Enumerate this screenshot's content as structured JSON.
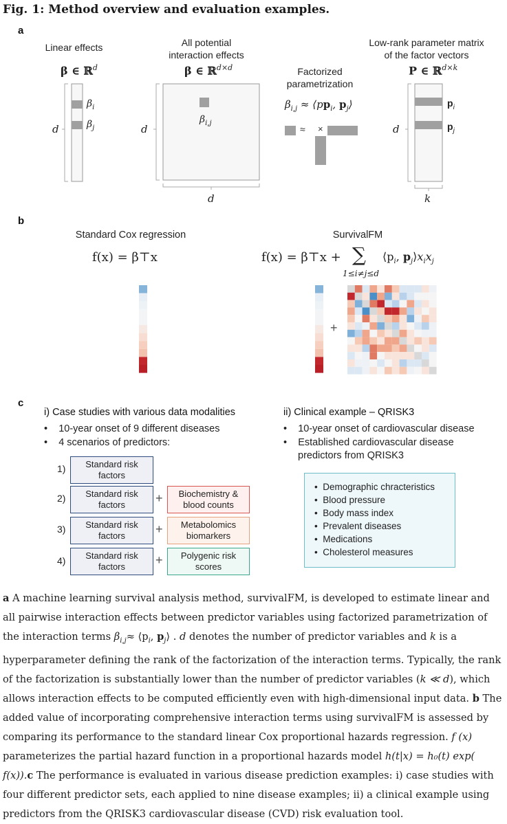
{
  "figure": {
    "title": "Fig. 1: Method overview and evaluation examples."
  },
  "panel_a": {
    "letter": "a",
    "linear_effects": "Linear effects",
    "beta_vec": "β ∈ ℝ",
    "beta_vec_sup": "d",
    "beta_i": "β",
    "beta_i_sub": "i",
    "beta_j": "β",
    "beta_j_sub": "j",
    "d_label": "d",
    "all_potential": [
      "All potential",
      "interaction effects"
    ],
    "beta_mat": "β ∈ ℝ",
    "beta_mat_sup": "d×d",
    "beta_ij": "β",
    "beta_ij_sub": "i,j",
    "factorized": [
      "Factorized",
      "parametrization"
    ],
    "factor_eq": "β",
    "factor_eq_sub": "i,j",
    "factor_eq_rhs": " ≈ ⟨p",
    "approx": "≈",
    "times": "×",
    "low_rank": [
      "Low-rank parameter matrix",
      "of the factor vectors"
    ],
    "p_mat": "P ∈ ℝ",
    "p_mat_sup": "d×k",
    "p_i": "p",
    "p_i_sub": "i",
    "p_j": "p",
    "p_j_sub": "j",
    "k_label": "k"
  },
  "panel_b": {
    "letter": "b",
    "cox_title": "Standard Cox regression",
    "cox_formula": "f(x) = β⊤x",
    "fm_title": "SurvivalFM",
    "fm_formula_lhs": "f(x) = β⊤x +",
    "fm_sum": "∑",
    "fm_sum_sub": "1≤i≠j≤d",
    "fm_formula_rhs": "⟨p",
    "plus": "+",
    "colors": {
      "blue_dark": "#4a8fc7",
      "blue_light": "#c8dced",
      "red_dark": "#c1272d",
      "red_light": "#f6c6b4"
    }
  },
  "panel_c": {
    "letter": "c",
    "left_header": "i) Case studies with various data modalities",
    "left_bullets": [
      "10-year onset of 9 different diseases",
      "4 scenarios of predictors:"
    ],
    "scenarios": [
      {
        "num": "1)",
        "std": "Standard risk factors",
        "extra": ""
      },
      {
        "num": "2)",
        "std": "Standard risk factors",
        "extra": "Biochemistry & blood counts"
      },
      {
        "num": "3)",
        "std": "Standard risk factors",
        "extra": "Metabolomics biomarkers"
      },
      {
        "num": "4)",
        "std": "Standard risk factors",
        "extra": "Polygenic risk scores"
      }
    ],
    "plus": "+",
    "right_header": "ii) Clinical example – QRISK3",
    "right_bullets": [
      "10-year onset of cardiovascular disease",
      "Established cardiovascular disease",
      "predictors from QRISK3"
    ],
    "clinical_items": [
      "Demographic chracteristics",
      "Blood pressure",
      "Body mass index",
      "Prevalent diseases",
      "Medications",
      "Cholesterol measures"
    ]
  },
  "caption": {
    "a_letter": "a",
    "a1": " A machine learning survival analysis method, survivalFM, is developed to estimate linear and all pairwise interaction effects between predictor variables using factorized parametrization of the interaction terms ",
    "a_beta": "β",
    "a_beta_sub": "i,j",
    "a_approx": "≈ ⟨p",
    "a2": " . ",
    "a_d": "d",
    "a3": " denotes the number of predictor variables and ",
    "a_k": "k",
    "a4": " is a hyperparameter defining the rank of the factorization of the interaction terms. Typically, the rank of the factorization is substantially lower than the number of predictor variables (",
    "a_kd": "k ≪ d",
    "a5": "), which allows interaction effects to be computed efficiently even with high-dimensional input data. ",
    "b_letter": "b",
    "b1": " The added value of incorporating comprehensive interaction terms using survivalFM is assessed by comparing its performance to the standard linear Cox proportional hazards regression. ",
    "b_fx": "f (x)",
    "b2": " parameterizes the partial hazard function in a proportional hazards model ",
    "b_h": "h(t|x) = h₀(t) exp( f(x)).",
    "c_letter": "c",
    "c1": " The performance is evaluated in various disease prediction examples: i) case studies with four different predictor sets, each applied to nine disease examples; ii) a clinical example using predictors from the QRISK3 cardiovascular disease (CVD) risk evaluation tool."
  }
}
